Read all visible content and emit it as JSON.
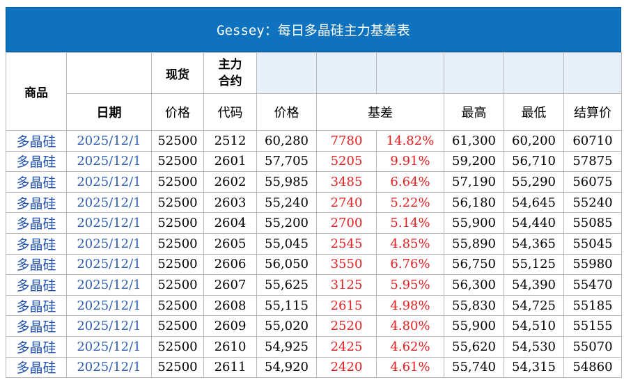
{
  "title": "Gessey：每日多晶硅主力基差表",
  "header": {
    "product": "商品",
    "date": "日期",
    "spot_group": "现货",
    "main_contract_line1": "主力",
    "main_contract_line2": "合约",
    "price": "价格",
    "code": "代码",
    "futures_price": "价格",
    "basis": "基差",
    "high": "最高",
    "low": "最低",
    "settle": "结算价"
  },
  "rows": [
    {
      "product": "多晶硅",
      "date": "2025/12/1",
      "spot": "52500",
      "code": "2512",
      "price": "60,280",
      "basis": "7780",
      "basis_pct": "14.82%",
      "high": "61,300",
      "low": "60,200",
      "settle": "60710"
    },
    {
      "product": "多晶硅",
      "date": "2025/12/1",
      "spot": "52500",
      "code": "2601",
      "price": "57,705",
      "basis": "5205",
      "basis_pct": "9.91%",
      "high": "59,200",
      "low": "56,710",
      "settle": "57875"
    },
    {
      "product": "多晶硅",
      "date": "2025/12/1",
      "spot": "52500",
      "code": "2602",
      "price": "55,985",
      "basis": "3485",
      "basis_pct": "6.64%",
      "high": "57,190",
      "low": "55,290",
      "settle": "56075"
    },
    {
      "product": "多晶硅",
      "date": "2025/12/1",
      "spot": "52500",
      "code": "2603",
      "price": "55,240",
      "basis": "2740",
      "basis_pct": "5.22%",
      "high": "56,180",
      "low": "54,645",
      "settle": "55240"
    },
    {
      "product": "多晶硅",
      "date": "2025/12/1",
      "spot": "52500",
      "code": "2604",
      "price": "55,200",
      "basis": "2700",
      "basis_pct": "5.14%",
      "high": "55,900",
      "low": "54,440",
      "settle": "55085"
    },
    {
      "product": "多晶硅",
      "date": "2025/12/1",
      "spot": "52500",
      "code": "2605",
      "price": "55,045",
      "basis": "2545",
      "basis_pct": "4.85%",
      "high": "55,890",
      "low": "54,365",
      "settle": "55045"
    },
    {
      "product": "多晶硅",
      "date": "2025/12/1",
      "spot": "52500",
      "code": "2606",
      "price": "56,050",
      "basis": "3550",
      "basis_pct": "6.76%",
      "high": "56,750",
      "low": "55,125",
      "settle": "55980"
    },
    {
      "product": "多晶硅",
      "date": "2025/12/1",
      "spot": "52500",
      "code": "2607",
      "price": "55,625",
      "basis": "3125",
      "basis_pct": "5.95%",
      "high": "56,300",
      "low": "54,390",
      "settle": "55470"
    },
    {
      "product": "多晶硅",
      "date": "2025/12/1",
      "spot": "52500",
      "code": "2608",
      "price": "55,115",
      "basis": "2615",
      "basis_pct": "4.98%",
      "high": "55,830",
      "low": "54,725",
      "settle": "55185"
    },
    {
      "product": "多晶硅",
      "date": "2025/12/1",
      "spot": "52500",
      "code": "2609",
      "price": "55,020",
      "basis": "2520",
      "basis_pct": "4.80%",
      "high": "55,900",
      "low": "54,510",
      "settle": "55155"
    },
    {
      "product": "多晶硅",
      "date": "2025/12/1",
      "spot": "52500",
      "code": "2610",
      "price": "54,925",
      "basis": "2425",
      "basis_pct": "4.62%",
      "high": "55,620",
      "low": "54,530",
      "settle": "55070"
    },
    {
      "product": "多晶硅",
      "date": "2025/12/1",
      "spot": "52500",
      "code": "2611",
      "price": "54,920",
      "basis": "2420",
      "basis_pct": "4.61%",
      "high": "55,740",
      "low": "54,315",
      "settle": "54860"
    }
  ],
  "colors": {
    "title_bg": "#0e72be",
    "header_shade": "#e6f0fb",
    "product_text": "#2050b0",
    "date_text": "#2f5fb5",
    "basis_text": "#e52020"
  }
}
